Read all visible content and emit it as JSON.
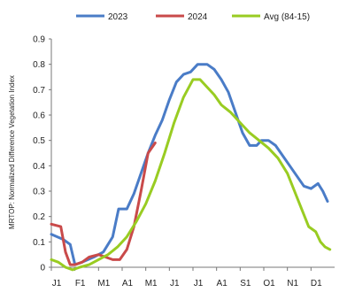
{
  "chart_data": {
    "type": "line",
    "title": "",
    "xlabel": "",
    "ylabel": "MRTOP: Normalized Difference Vegetation Index",
    "ylim": [
      0,
      0.9
    ],
    "yticks": [
      "0",
      "0.1",
      "0.2",
      "0.3",
      "0.4",
      "0.5",
      "0.6",
      "0.7",
      "0.8",
      "0.9"
    ],
    "grid": false,
    "legend_position": "top",
    "xticks": [
      "J1",
      "F1",
      "M1",
      "A1",
      "M1",
      "J1",
      "J1",
      "A1",
      "S1",
      "O1",
      "N1",
      "D1"
    ],
    "series": [
      {
        "name": "2023",
        "color": "#4a7cc7",
        "points": [
          [
            0,
            0.13
          ],
          [
            0.5,
            0.11
          ],
          [
            0.8,
            0.09
          ],
          [
            1.0,
            0.01
          ],
          [
            1.3,
            0.02
          ],
          [
            1.8,
            0.04
          ],
          [
            2.2,
            0.06
          ],
          [
            2.6,
            0.12
          ],
          [
            2.85,
            0.23
          ],
          [
            3.2,
            0.23
          ],
          [
            3.5,
            0.29
          ],
          [
            3.8,
            0.37
          ],
          [
            4.1,
            0.45
          ],
          [
            4.4,
            0.52
          ],
          [
            4.7,
            0.58
          ],
          [
            5.0,
            0.66
          ],
          [
            5.3,
            0.73
          ],
          [
            5.6,
            0.76
          ],
          [
            5.9,
            0.77
          ],
          [
            6.2,
            0.8
          ],
          [
            6.6,
            0.8
          ],
          [
            6.9,
            0.78
          ],
          [
            7.2,
            0.74
          ],
          [
            7.5,
            0.69
          ],
          [
            7.8,
            0.61
          ],
          [
            8.1,
            0.53
          ],
          [
            8.4,
            0.48
          ],
          [
            8.7,
            0.48
          ],
          [
            8.9,
            0.5
          ],
          [
            9.2,
            0.5
          ],
          [
            9.5,
            0.48
          ],
          [
            9.8,
            0.44
          ],
          [
            10.1,
            0.4
          ],
          [
            10.4,
            0.36
          ],
          [
            10.7,
            0.32
          ],
          [
            11.0,
            0.31
          ],
          [
            11.3,
            0.33
          ],
          [
            11.5,
            0.3
          ],
          [
            11.7,
            0.26
          ]
        ]
      },
      {
        "name": "2024",
        "color": "#c94a4a",
        "points": [
          [
            0,
            0.17
          ],
          [
            0.4,
            0.16
          ],
          [
            0.6,
            0.06
          ],
          [
            0.8,
            0.01
          ],
          [
            1.0,
            0.01
          ],
          [
            1.3,
            0.02
          ],
          [
            1.6,
            0.04
          ],
          [
            2.0,
            0.05
          ],
          [
            2.3,
            0.04
          ],
          [
            2.6,
            0.03
          ],
          [
            2.9,
            0.03
          ],
          [
            3.2,
            0.07
          ],
          [
            3.5,
            0.16
          ],
          [
            3.8,
            0.3
          ],
          [
            4.1,
            0.45
          ],
          [
            4.4,
            0.49
          ]
        ]
      },
      {
        "name": "Avg (84-15)",
        "color": "#99cc22",
        "points": [
          [
            0,
            0.03
          ],
          [
            0.3,
            0.02
          ],
          [
            0.6,
            0.0
          ],
          [
            0.9,
            -0.01
          ],
          [
            1.2,
            0.0
          ],
          [
            1.6,
            0.01
          ],
          [
            2.0,
            0.03
          ],
          [
            2.4,
            0.05
          ],
          [
            2.8,
            0.08
          ],
          [
            3.2,
            0.12
          ],
          [
            3.6,
            0.18
          ],
          [
            4.0,
            0.25
          ],
          [
            4.4,
            0.34
          ],
          [
            4.8,
            0.45
          ],
          [
            5.2,
            0.57
          ],
          [
            5.6,
            0.67
          ],
          [
            6.0,
            0.74
          ],
          [
            6.3,
            0.74
          ],
          [
            6.6,
            0.71
          ],
          [
            6.9,
            0.68
          ],
          [
            7.2,
            0.64
          ],
          [
            7.6,
            0.61
          ],
          [
            8.0,
            0.57
          ],
          [
            8.4,
            0.53
          ],
          [
            8.8,
            0.5
          ],
          [
            9.2,
            0.47
          ],
          [
            9.6,
            0.43
          ],
          [
            10.0,
            0.37
          ],
          [
            10.3,
            0.3
          ],
          [
            10.6,
            0.23
          ],
          [
            10.9,
            0.16
          ],
          [
            11.2,
            0.14
          ],
          [
            11.4,
            0.1
          ],
          [
            11.6,
            0.08
          ],
          [
            11.8,
            0.07
          ]
        ]
      }
    ]
  }
}
